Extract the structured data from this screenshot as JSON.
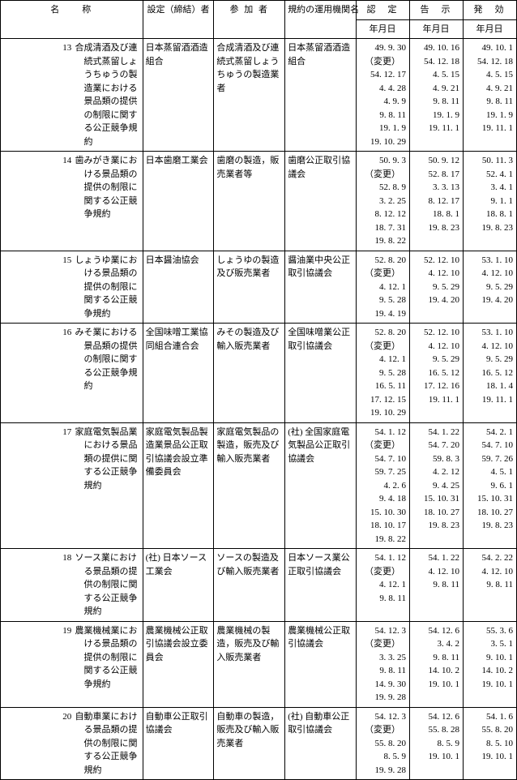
{
  "headers": {
    "name": "名　　称",
    "settei": "設定（締結）者",
    "sanka": "参 加 者",
    "kiyaku": "規約の運用機関名",
    "nintei": "認　定",
    "kokuji": "告　示",
    "hakko": "発　効",
    "nengetsu": "年月日"
  },
  "rows": [
    {
      "num": "13",
      "name": "合成清酒及び連続式蒸留しょうちゅうの製造業における景品類の提供の制限に関する公正競争規約",
      "settei": "日本蒸留酒酒造組合",
      "sanka": "合成清酒及び連続式蒸留しょうちゅうの製造業者",
      "kiyaku": "日本蒸留酒酒造組合",
      "nintei": [
        "49. 9. 30",
        "（変更）",
        "54. 12. 17",
        "4. 4. 28",
        "4. 9.  9",
        "9. 8. 11",
        "19. 1.  9",
        "19. 10. 29"
      ],
      "kokuji": [
        "49. 10. 16",
        "",
        "54. 12. 18",
        "4. 5. 15",
        "4. 9. 21",
        "9. 8. 11",
        "19. 1.  9",
        "19. 11.  1"
      ],
      "hakko": [
        "49. 10.  1",
        "",
        "54. 12. 18",
        "4. 5. 15",
        "4. 9. 21",
        "9. 8. 11",
        "19. 1.  9",
        "19. 11.  1"
      ]
    },
    {
      "num": "14",
      "name": "歯みがき業における景品類の提供の制限に関する公正競争規約",
      "settei": "日本歯磨工業会",
      "sanka": "歯磨の製造，販売業者等",
      "kiyaku": "歯磨公正取引協議会",
      "nintei": [
        "50. 9.  3",
        "（変更）",
        "52. 8.  9",
        "3. 2. 25",
        "8. 12. 12",
        "18. 7. 31",
        "19. 8. 22"
      ],
      "kokuji": [
        "50. 9. 12",
        "",
        "52. 8. 17",
        "3. 3. 13",
        "8. 12. 17",
        "18. 8.  1",
        "19. 8. 23"
      ],
      "hakko": [
        "50. 11.  3",
        "",
        "52. 4.  1",
        "3. 4.  1",
        "9. 1.  1",
        "18. 8.  1",
        "19. 8. 23"
      ]
    },
    {
      "num": "15",
      "name": "しょうゆ業における景品類の提供の制限に関する公正競争規約",
      "settei": "日本醤油協会",
      "sanka": "しょうゆの製造及び販売業者",
      "kiyaku": "醤油業中央公正取引協議会",
      "nintei": [
        "52. 8. 20",
        "（変更）",
        "4. 12.  1",
        "9. 5. 28",
        "19. 4. 19"
      ],
      "kokuji": [
        "52. 12. 10",
        "",
        "4. 12. 10",
        "9. 5. 29",
        "19. 4. 20"
      ],
      "hakko": [
        "53. 1. 10",
        "",
        "4. 12. 10",
        "9. 5. 29",
        "19. 4. 20"
      ]
    },
    {
      "num": "16",
      "name": "みそ業における景品類の提供の制限に関する公正競争規約",
      "settei": "全国味噌工業協同組合連合会",
      "sanka": "みその製造及び輸入販売業者",
      "kiyaku": "全国味噌業公正取引協議会",
      "nintei": [
        "52. 8. 20",
        "（変更）",
        "4. 12.  1",
        "9. 5. 28",
        "16. 5. 11",
        "17. 12. 15",
        "19. 10. 29"
      ],
      "kokuji": [
        "52. 12. 10",
        "",
        "4. 12. 10",
        "9. 5. 29",
        "16. 5. 12",
        "17. 12. 16",
        "19. 11.  1"
      ],
      "hakko": [
        "53. 1. 10",
        "",
        "4. 12. 10",
        "9. 5. 29",
        "16. 5. 12",
        "18. 1.  4",
        "19. 11.  1"
      ]
    },
    {
      "num": "17",
      "name": "家庭電気製品業における景品類の提供に関する公正競争規約",
      "settei": "家庭電気製品製造業景品公正取引協議会設立準備委員会",
      "sanka": "家庭電気製品の製造，販売及び輸入販売業者",
      "kiyaku": "(社) 全国家庭電気製品公正取引協議会",
      "nintei": [
        "54. 1. 12",
        "（変更）",
        "54. 7. 10",
        "59. 7. 25",
        "4. 2.  6",
        "9. 4. 18",
        "15. 10. 30",
        "18. 10. 17",
        "19. 8. 22"
      ],
      "kokuji": [
        "54. 1. 22",
        "",
        "54. 7. 20",
        "59. 8.  3",
        "4. 2. 12",
        "9. 4. 25",
        "15. 10. 31",
        "18. 10. 27",
        "19. 8. 23"
      ],
      "hakko": [
        "54. 2.  1",
        "",
        "54. 7. 10",
        "59. 7. 26",
        "4. 5.  1",
        "9. 6.  1",
        "15. 10. 31",
        "18. 10. 27",
        "19. 8. 23"
      ]
    },
    {
      "num": "18",
      "name": "ソース業における景品類の提供の制限に関する公正競争規約",
      "settei": "(社) 日本ソース工業会",
      "sanka": "ソースの製造及び輸入販売業者",
      "kiyaku": "日本ソース業公正取引協議会",
      "nintei": [
        "54. 1. 12",
        "（変更）",
        "4. 12.  1",
        "9. 8. 11"
      ],
      "kokuji": [
        "54. 1. 22",
        "",
        "4. 12. 10",
        "9. 8. 11"
      ],
      "hakko": [
        "54. 2. 22",
        "",
        "4. 12. 10",
        "9. 8. 11"
      ]
    },
    {
      "num": "19",
      "name": "農業機械業における景品類の提供の制限に関する公正競争規約",
      "settei": "農業機械公正取引協議会設立委員会",
      "sanka": "農業機械の製造，販売及び輸入販売業者",
      "kiyaku": "農業機械公正取引協議会",
      "nintei": [
        "54. 12.  3",
        "（変更）",
        "3. 3. 25",
        "9. 8. 11",
        "14. 9. 30",
        "19. 9. 28"
      ],
      "kokuji": [
        "54. 12.  6",
        "",
        "3. 4.  2",
        "9. 8. 11",
        "14. 10.  2",
        "19. 10.  1"
      ],
      "hakko": [
        "55. 3.  6",
        "",
        "3. 5.  1",
        "9. 10.  1",
        "14. 10.  2",
        "19. 10.  1"
      ]
    },
    {
      "num": "20",
      "name": "自動車業における景品類の提供の制限に関する公正競争規約",
      "settei": "自動車公正取引協議会",
      "sanka": "自動車の製造，販売及び輸入販売業者",
      "kiyaku": "(社) 自動車公正取引協議会",
      "nintei": [
        "54. 12.  3",
        "（変更）",
        "55. 8. 20",
        "8. 5.  9",
        "19. 9. 28"
      ],
      "kokuji": [
        "54. 12.  6",
        "",
        "55. 8. 28",
        "8. 5.  9",
        "19. 10.  1"
      ],
      "hakko": [
        "54. 1.  6",
        "",
        "55. 8. 20",
        "8. 5. 10",
        "19. 10.  1"
      ]
    }
  ]
}
